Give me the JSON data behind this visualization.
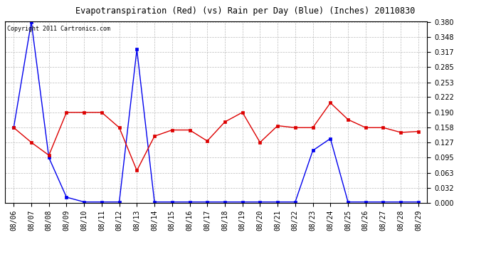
{
  "title": "Evapotranspiration (Red) (vs) Rain per Day (Blue) (Inches) 20110830",
  "copyright": "Copyright 2011 Cartronics.com",
  "x_labels": [
    "08/06",
    "08/07",
    "08/08",
    "08/09",
    "08/10",
    "08/11",
    "08/12",
    "08/13",
    "08/14",
    "08/15",
    "08/16",
    "08/17",
    "08/18",
    "08/19",
    "08/20",
    "08/21",
    "08/22",
    "08/23",
    "08/24",
    "08/25",
    "08/26",
    "08/27",
    "08/28",
    "08/29"
  ],
  "blue_data": [
    0.158,
    0.38,
    0.095,
    0.012,
    0.002,
    0.002,
    0.002,
    0.322,
    0.002,
    0.002,
    0.002,
    0.002,
    0.002,
    0.002,
    0.002,
    0.002,
    0.002,
    0.11,
    0.135,
    0.002,
    0.002,
    0.002,
    0.002,
    0.002
  ],
  "red_data": [
    0.158,
    0.127,
    0.1,
    0.19,
    0.19,
    0.19,
    0.158,
    0.068,
    0.14,
    0.153,
    0.153,
    0.13,
    0.17,
    0.19,
    0.127,
    0.162,
    0.158,
    0.158,
    0.21,
    0.175,
    0.158,
    0.158,
    0.148,
    0.15
  ],
  "y_ticks": [
    0.0,
    0.032,
    0.063,
    0.095,
    0.127,
    0.158,
    0.19,
    0.222,
    0.253,
    0.285,
    0.317,
    0.348,
    0.38
  ],
  "y_min": 0.0,
  "y_max": 0.38,
  "bg_color": "#FFFFFF",
  "plot_bg_color": "#FFFFFF",
  "grid_color": "#BBBBBB",
  "blue_color": "#0000EE",
  "red_color": "#DD0000",
  "title_fontsize": 8.5,
  "copyright_fontsize": 6,
  "tick_fontsize": 7,
  "marker": "s",
  "marker_size": 2.5,
  "line_width": 1.0
}
